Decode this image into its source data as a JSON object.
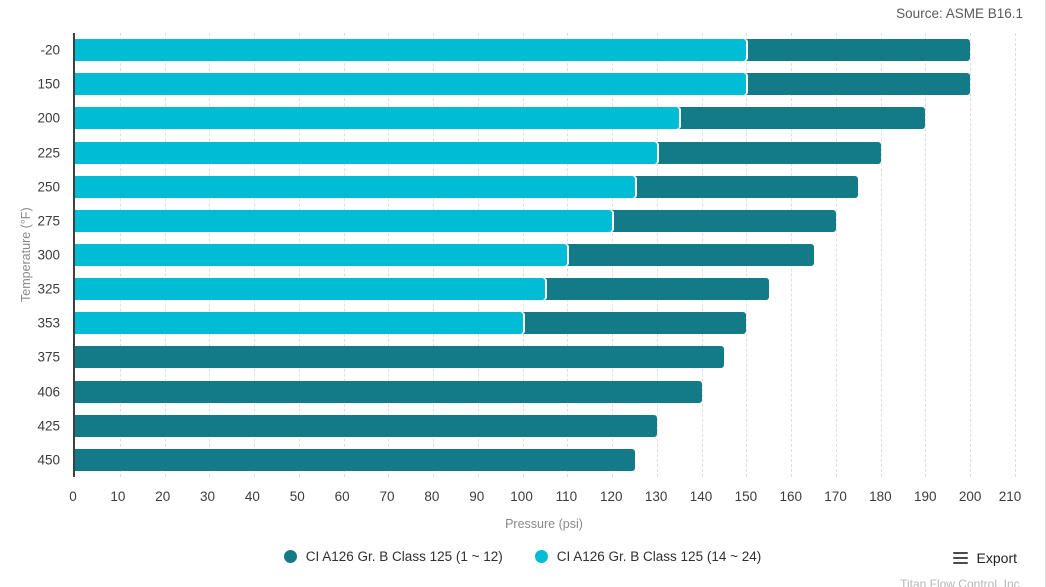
{
  "chart": {
    "source": "Source: ASME B16.1",
    "export_label": "Export",
    "watermark": "Titan Flow Control, Inc."
  },
  "colors": {
    "series1": "#137b87",
    "series2": "#00bcd4",
    "grid": "#dedede",
    "axis_line": "#3f3f3f",
    "tick_text": "#3c3c3c",
    "axis_title_text": "#8a8a8a",
    "source_text": "#595959",
    "watermark_text": "#b5b5b5"
  },
  "chart_data": {
    "type": "bar",
    "orientation": "horizontal",
    "title": "",
    "xlabel": "Pressure (psi)",
    "ylabel": "Temperature (°F)",
    "xlim": [
      0,
      210
    ],
    "x_tick_step": 10,
    "grid": "vertical-dashed",
    "legend_position": "bottom",
    "categories": [
      "-20",
      "150",
      "200",
      "225",
      "250",
      "275",
      "300",
      "325",
      "353",
      "375",
      "406",
      "425",
      "450"
    ],
    "series": [
      {
        "name": "CI A126 Gr. B Class 125 (1 ~ 12)",
        "color": "#137b87",
        "values": [
          200,
          200,
          190,
          180,
          175,
          170,
          165,
          155,
          150,
          145,
          140,
          130,
          125
        ]
      },
      {
        "name": "CI A126 Gr. B Class 125 (14 ~ 24)",
        "color": "#00bcd4",
        "values": [
          150,
          150,
          135,
          130,
          125,
          120,
          110,
          105,
          100,
          null,
          null,
          null,
          null
        ]
      }
    ]
  }
}
